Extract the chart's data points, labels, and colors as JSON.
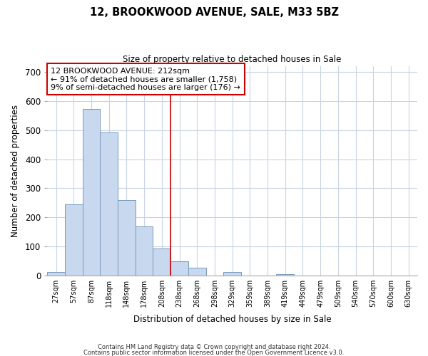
{
  "title": "12, BROOKWOOD AVENUE, SALE, M33 5BZ",
  "subtitle": "Size of property relative to detached houses in Sale",
  "xlabel": "Distribution of detached houses by size in Sale",
  "ylabel": "Number of detached properties",
  "bin_labels": [
    "27sqm",
    "57sqm",
    "87sqm",
    "118sqm",
    "148sqm",
    "178sqm",
    "208sqm",
    "238sqm",
    "268sqm",
    "298sqm",
    "329sqm",
    "359sqm",
    "389sqm",
    "419sqm",
    "449sqm",
    "479sqm",
    "509sqm",
    "540sqm",
    "570sqm",
    "600sqm",
    "630sqm"
  ],
  "bar_heights": [
    12,
    245,
    573,
    492,
    259,
    169,
    92,
    47,
    27,
    0,
    12,
    0,
    0,
    5,
    0,
    0,
    0,
    0,
    0,
    0,
    0
  ],
  "bar_color": "#c8d8ee",
  "bar_edge_color": "#7799bb",
  "property_line_color": "#cc0000",
  "property_line_bin_index": 7,
  "ylim": [
    0,
    720
  ],
  "yticks": [
    0,
    100,
    200,
    300,
    400,
    500,
    600,
    700
  ],
  "annotation_line1": "12 BROOKWOOD AVENUE: 212sqm",
  "annotation_line2": "← 91% of detached houses are smaller (1,758)",
  "annotation_line3": "9% of semi-detached houses are larger (176) →",
  "annotation_box_color": "#ffffff",
  "annotation_box_edge_color": "#cc0000",
  "footer_line1": "Contains HM Land Registry data © Crown copyright and database right 2024.",
  "footer_line2": "Contains public sector information licensed under the Open Government Licence v3.0.",
  "background_color": "#ffffff",
  "grid_color": "#c8d4e4"
}
